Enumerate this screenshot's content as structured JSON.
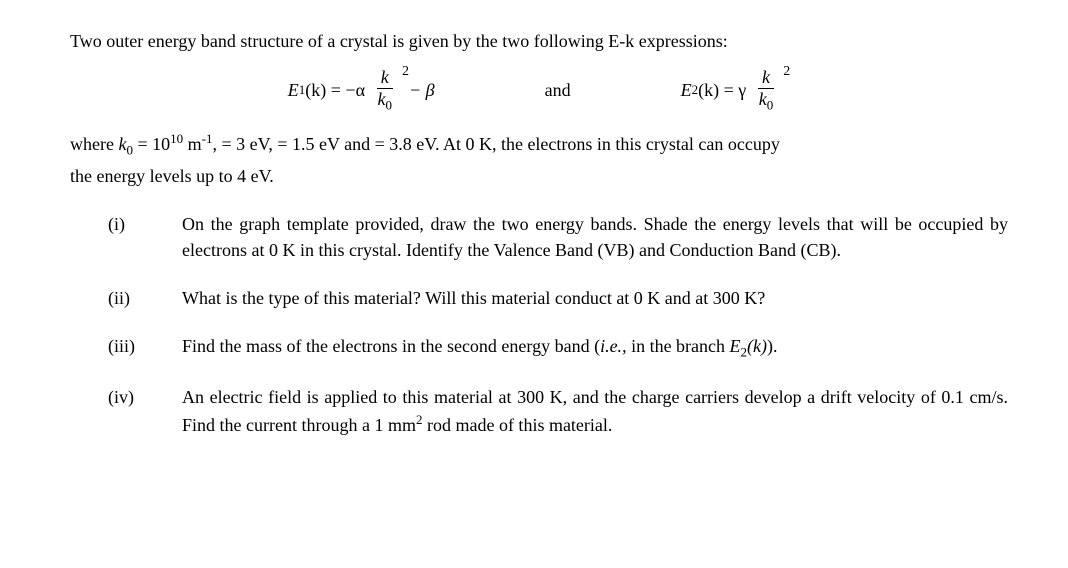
{
  "intro": "Two outer energy band structure of a crystal is given by the two following E-k expressions:",
  "eq1": {
    "lhs_func": "E",
    "lhs_sub": "1",
    "lhs_arg": "(k)",
    "eq": "= −α",
    "frac_num": "k",
    "frac_den_k": "k",
    "frac_den_sub": "0",
    "exp": "2",
    "tail": " − β"
  },
  "conj": "and",
  "eq2": {
    "lhs_func": "E",
    "lhs_sub": "2",
    "lhs_arg": "(k)",
    "eq": "= γ",
    "frac_num": "k",
    "frac_den_k": "k",
    "frac_den_sub": "0",
    "exp": "2"
  },
  "where": {
    "a": "where ",
    "k0_sym_k": "k",
    "k0_sym_0": "0",
    "b": " = 10",
    "exp10": "10",
    "c": " m",
    "expm1": "-1",
    "d": ",    = 3 eV,    = 1.5 eV and    = 3.8 eV. At 0 K, the electrons in this crystal can occupy",
    "line2": "the energy levels up to 4 eV."
  },
  "questions": [
    {
      "label": "(i)",
      "text": "On the graph template provided, draw the two energy bands. Shade the energy levels that will be occupied by electrons at 0 K in this crystal. Identify the Valence Band (VB) and Conduction Band (CB)."
    },
    {
      "label": "(ii)",
      "text": "What is the type of this material? Will this material conduct at 0 K and at 300 K?"
    },
    {
      "label": "(iii)",
      "text_a": "Find the mass of the electrons in the second energy band (",
      "text_ie": "i.e.",
      "text_b": ", in the branch ",
      "branch_E": "E",
      "branch_sub": "2",
      "branch_k": "(k)",
      "text_c": ")."
    },
    {
      "label": "(iv)",
      "text_a": "An electric field is applied to this material at 300 K, and the charge carriers develop a drift velocity of 0.1 cm/s. Find the current through a 1 mm",
      "exp2": "2",
      "text_b": " rod made of this material."
    }
  ]
}
